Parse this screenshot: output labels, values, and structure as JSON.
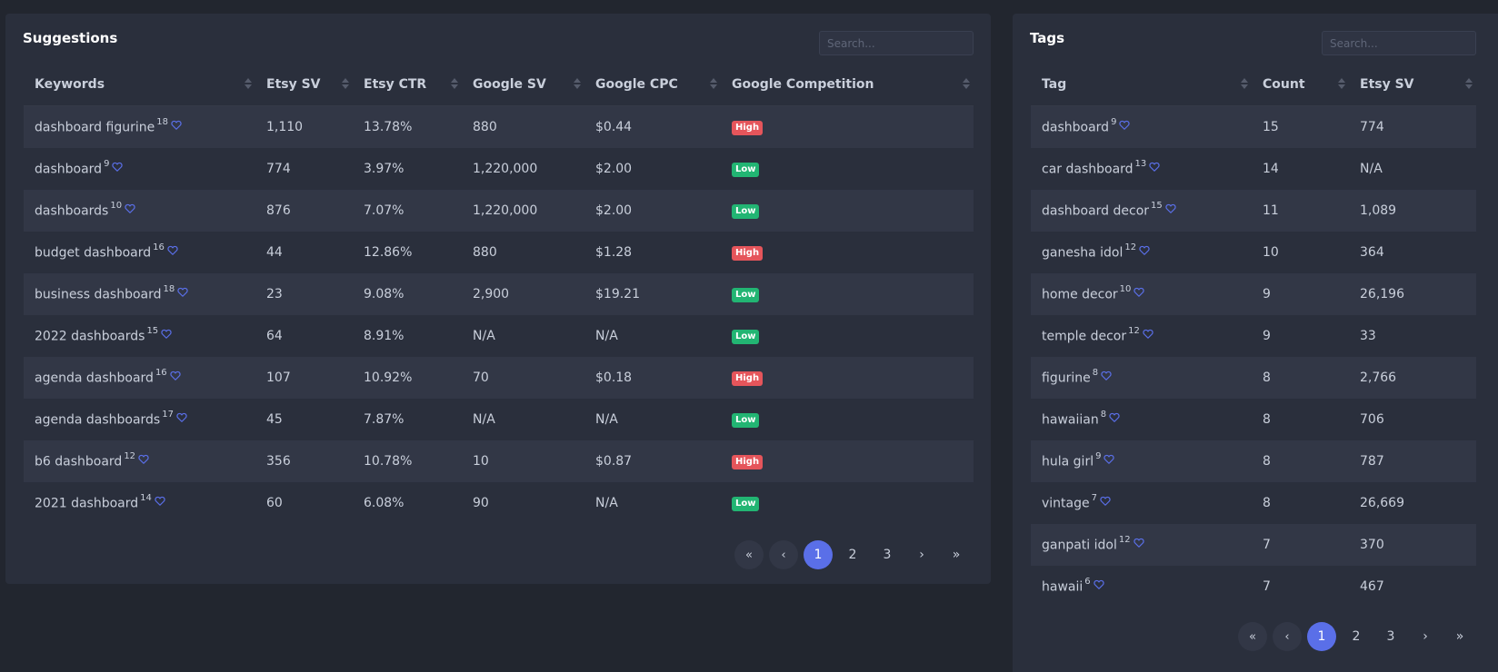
{
  "suggestions": {
    "title": "Suggestions",
    "search_placeholder": "Search...",
    "columns": [
      "Keywords",
      "Etsy SV",
      "Etsy CTR",
      "Google SV",
      "Google CPC",
      "Google Competition"
    ],
    "rows": [
      {
        "keyword": "dashboard figurine",
        "sup": "18",
        "etsy_sv": "1,110",
        "etsy_ctr": "13.78%",
        "google_sv": "880",
        "google_cpc": "$0.44",
        "competition": "High"
      },
      {
        "keyword": "dashboard",
        "sup": "9",
        "etsy_sv": "774",
        "etsy_ctr": "3.97%",
        "google_sv": "1,220,000",
        "google_cpc": "$2.00",
        "competition": "Low"
      },
      {
        "keyword": "dashboards",
        "sup": "10",
        "etsy_sv": "876",
        "etsy_ctr": "7.07%",
        "google_sv": "1,220,000",
        "google_cpc": "$2.00",
        "competition": "Low"
      },
      {
        "keyword": "budget dashboard",
        "sup": "16",
        "etsy_sv": "44",
        "etsy_ctr": "12.86%",
        "google_sv": "880",
        "google_cpc": "$1.28",
        "competition": "High"
      },
      {
        "keyword": "business dashboard",
        "sup": "18",
        "etsy_sv": "23",
        "etsy_ctr": "9.08%",
        "google_sv": "2,900",
        "google_cpc": "$19.21",
        "competition": "Low"
      },
      {
        "keyword": "2022 dashboards",
        "sup": "15",
        "etsy_sv": "64",
        "etsy_ctr": "8.91%",
        "google_sv": "N/A",
        "google_cpc": "N/A",
        "competition": "Low"
      },
      {
        "keyword": "agenda dashboard",
        "sup": "16",
        "etsy_sv": "107",
        "etsy_ctr": "10.92%",
        "google_sv": "70",
        "google_cpc": "$0.18",
        "competition": "High"
      },
      {
        "keyword": "agenda dashboards",
        "sup": "17",
        "etsy_sv": "45",
        "etsy_ctr": "7.87%",
        "google_sv": "N/A",
        "google_cpc": "N/A",
        "competition": "Low"
      },
      {
        "keyword": "b6 dashboard",
        "sup": "12",
        "etsy_sv": "356",
        "etsy_ctr": "10.78%",
        "google_sv": "10",
        "google_cpc": "$0.87",
        "competition": "High"
      },
      {
        "keyword": "2021 dashboard",
        "sup": "14",
        "etsy_sv": "60",
        "etsy_ctr": "6.08%",
        "google_sv": "90",
        "google_cpc": "N/A",
        "competition": "Low"
      }
    ],
    "pagination": {
      "first": "«",
      "prev": "‹",
      "pages": [
        "1",
        "2",
        "3"
      ],
      "active": "1",
      "next": "›",
      "last": "»"
    }
  },
  "tags": {
    "title": "Tags",
    "search_placeholder": "Search...",
    "columns": [
      "Tag",
      "Count",
      "Etsy SV"
    ],
    "rows": [
      {
        "tag": "dashboard",
        "sup": "9",
        "count": "15",
        "etsy_sv": "774"
      },
      {
        "tag": "car dashboard",
        "sup": "13",
        "count": "14",
        "etsy_sv": "N/A"
      },
      {
        "tag": "dashboard decor",
        "sup": "15",
        "count": "11",
        "etsy_sv": "1,089"
      },
      {
        "tag": "ganesha idol",
        "sup": "12",
        "count": "10",
        "etsy_sv": "364"
      },
      {
        "tag": "home decor",
        "sup": "10",
        "count": "9",
        "etsy_sv": "26,196"
      },
      {
        "tag": "temple decor",
        "sup": "12",
        "count": "9",
        "etsy_sv": "33"
      },
      {
        "tag": "figurine",
        "sup": "8",
        "count": "8",
        "etsy_sv": "2,766"
      },
      {
        "tag": "hawaiian",
        "sup": "8",
        "count": "8",
        "etsy_sv": "706"
      },
      {
        "tag": "hula girl",
        "sup": "9",
        "count": "8",
        "etsy_sv": "787"
      },
      {
        "tag": "vintage",
        "sup": "7",
        "count": "8",
        "etsy_sv": "26,669"
      },
      {
        "tag": "ganpati idol",
        "sup": "12",
        "count": "7",
        "etsy_sv": "370"
      },
      {
        "tag": "hawaii",
        "sup": "6",
        "count": "7",
        "etsy_sv": "467"
      }
    ],
    "pagination": {
      "first": "«",
      "prev": "‹",
      "pages": [
        "1",
        "2",
        "3"
      ],
      "active": "1",
      "next": "›",
      "last": "»"
    }
  },
  "icons": {
    "favorite": "heart-outline-icon",
    "sort": "sort-arrows-icon"
  },
  "colors": {
    "accent": "#5a6fe8",
    "high": "#e5555b",
    "low": "#22b573",
    "heart": "#5a6fe8"
  }
}
